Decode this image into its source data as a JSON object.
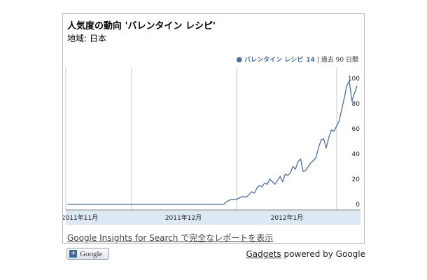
{
  "widget": {
    "title": "人気度の動向 'バレンタイン  レシピ'",
    "region": "地域: 日本",
    "legend": {
      "series": "バレンタイン レシピ",
      "value": "14",
      "separator": "|",
      "range": "過去 90 日間"
    },
    "footer_link": "Google Insights for Search で完全なレポートを表示"
  },
  "badge": {
    "plus": "+",
    "label": "Google"
  },
  "gadgets": {
    "link": "Gadgets",
    "suffix": " powered by Google"
  },
  "colors": {
    "line": "#4a6fa5",
    "axis_band": "#dde8f5",
    "grid": "#c8c8c8"
  },
  "chart_data": {
    "type": "line",
    "x_tick_labels": [
      "2011年11月",
      "2011年12月",
      "2012年1月"
    ],
    "y_tick_labels": [
      "100",
      "80",
      "60",
      "40",
      "20",
      "0"
    ],
    "ylim": [
      0,
      100
    ],
    "series": [
      {
        "values": [
          0,
          0,
          0,
          0,
          0,
          0,
          0,
          0,
          0,
          0,
          0,
          0,
          0,
          0,
          0,
          0,
          0,
          0,
          0,
          0,
          0,
          0,
          0,
          0,
          0,
          0,
          0,
          0,
          0,
          0,
          0,
          0,
          0,
          0,
          0,
          0,
          0,
          0,
          0,
          0,
          0,
          0,
          0,
          0,
          0,
          0,
          0,
          0,
          0,
          0,
          0,
          0,
          0,
          0,
          0,
          0,
          0,
          0,
          0,
          0,
          0,
          0,
          2,
          3,
          4,
          4,
          4,
          5,
          6,
          6,
          6,
          8,
          10,
          9,
          13,
          15,
          14,
          17,
          16,
          20,
          18,
          16,
          19,
          22,
          18,
          24,
          23,
          25,
          30,
          28,
          34,
          36,
          26,
          27,
          30,
          33,
          35,
          37,
          45,
          51,
          52,
          45,
          53,
          59,
          58,
          62,
          66,
          75,
          84,
          94,
          98,
          82,
          88,
          94
        ]
      }
    ]
  }
}
